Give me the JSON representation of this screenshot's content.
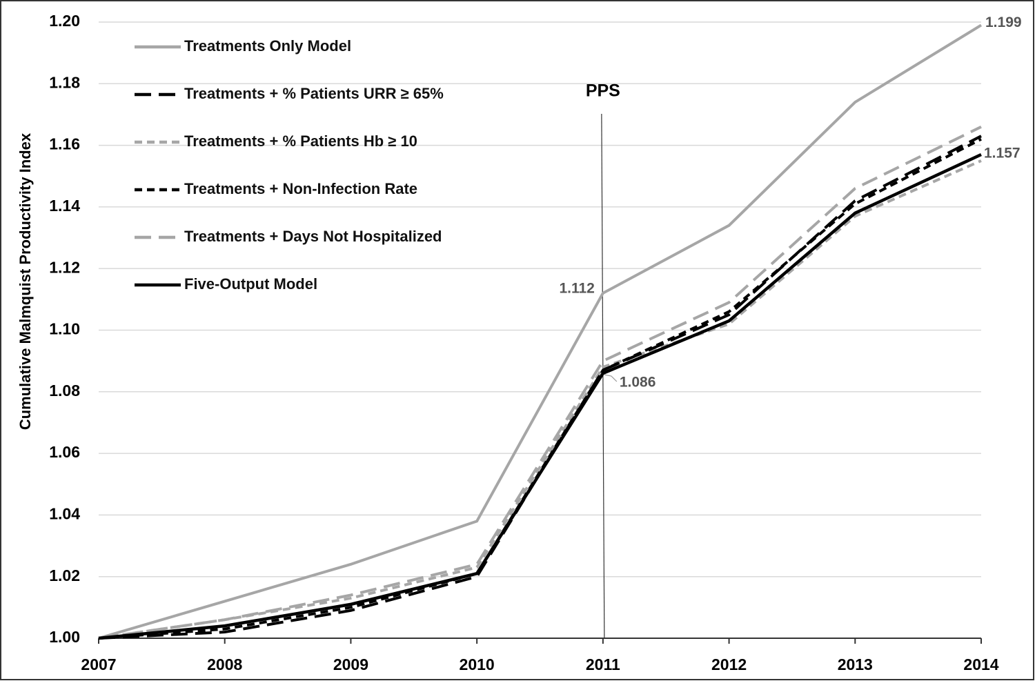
{
  "chart_data": {
    "type": "line",
    "ylabel": "Cumulative Malmquist Productivity Index",
    "x": [
      2007,
      2008,
      2009,
      2010,
      2011,
      2012,
      2013,
      2014
    ],
    "xlim": [
      2007,
      2014
    ],
    "xticks": [
      2007,
      2008,
      2009,
      2010,
      2011,
      2012,
      2013,
      2014
    ],
    "ylim": [
      1.0,
      1.2
    ],
    "yticks": [
      {
        "value": 1.0,
        "label": "1.00"
      },
      {
        "value": 1.02,
        "label": "1.02"
      },
      {
        "value": 1.04,
        "label": "1.04"
      },
      {
        "value": 1.06,
        "label": "1.06"
      },
      {
        "value": 1.08,
        "label": "1.08"
      },
      {
        "value": 1.1,
        "label": "1.10"
      },
      {
        "value": 1.12,
        "label": "1.12"
      },
      {
        "value": 1.14,
        "label": "1.14"
      },
      {
        "value": 1.16,
        "label": "1.16"
      },
      {
        "value": 1.18,
        "label": "1.18"
      },
      {
        "value": 1.2,
        "label": "1.20"
      }
    ],
    "grid": true,
    "legend": "upper left",
    "annotations": [
      {
        "text": "PPS",
        "x": 2011
      }
    ],
    "series": [
      {
        "name": "Treatments Only Model",
        "color": "#a6a6a6",
        "linestyle": "solid",
        "values": [
          1.0,
          1.012,
          1.024,
          1.038,
          1.112,
          1.134,
          1.174,
          1.199
        ]
      },
      {
        "name": "Treatments + % Patients URR ≥ 65%",
        "color": "#000000",
        "linestyle": "long-dash",
        "values": [
          1.0,
          1.002,
          1.009,
          1.02,
          1.087,
          1.105,
          1.142,
          1.163
        ]
      },
      {
        "name": "Treatments + % Patients Hb ≥ 10",
        "color": "#a6a6a6",
        "linestyle": "short-dash",
        "values": [
          1.0,
          1.006,
          1.013,
          1.023,
          1.088,
          1.102,
          1.137,
          1.155
        ]
      },
      {
        "name": "Treatments + Non-Infection Rate",
        "color": "#000000",
        "linestyle": "short-dash",
        "values": [
          1.0,
          1.003,
          1.01,
          1.021,
          1.087,
          1.106,
          1.141,
          1.162
        ]
      },
      {
        "name": "Treatments + Days Not Hospitalized",
        "color": "#a6a6a6",
        "linestyle": "long-dash",
        "values": [
          1.0,
          1.006,
          1.014,
          1.024,
          1.09,
          1.109,
          1.146,
          1.166
        ]
      },
      {
        "name": "Five-Output Model",
        "color": "#000000",
        "linestyle": "solid",
        "values": [
          1.0,
          1.004,
          1.011,
          1.021,
          1.086,
          1.103,
          1.138,
          1.157
        ]
      }
    ]
  }
}
